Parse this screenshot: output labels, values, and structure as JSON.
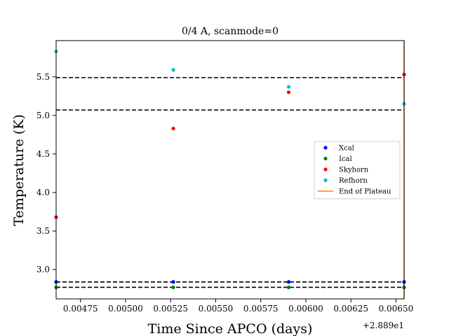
{
  "chart_data": {
    "type": "scatter",
    "title": "0/4 A, scanmode=0",
    "xlabel": "Time Since APCO (days)",
    "ylabel": "Temperature (K)",
    "x_offset_label": "+2.889e1",
    "xlim": [
      0.004615,
      0.006545
    ],
    "ylim": [
      2.62,
      5.97
    ],
    "x_ticks": [
      {
        "value": 0.00475,
        "label": "0.00475"
      },
      {
        "value": 0.005,
        "label": "0.00500"
      },
      {
        "value": 0.00525,
        "label": "0.00525"
      },
      {
        "value": 0.0055,
        "label": "0.00550"
      },
      {
        "value": 0.00575,
        "label": "0.00575"
      },
      {
        "value": 0.006,
        "label": "0.00600"
      },
      {
        "value": 0.00625,
        "label": "0.00625"
      },
      {
        "value": 0.0065,
        "label": "0.00650"
      }
    ],
    "y_ticks": [
      {
        "value": 3.0,
        "label": "3.0"
      },
      {
        "value": 3.5,
        "label": "3.5"
      },
      {
        "value": 4.0,
        "label": "4.0"
      },
      {
        "value": 4.5,
        "label": "4.5"
      },
      {
        "value": 5.0,
        "label": "5.0"
      },
      {
        "value": 5.5,
        "label": "5.5"
      }
    ],
    "series": [
      {
        "name": "Xcal",
        "color": "#0000ff",
        "x": [
          0.004615,
          0.005265,
          0.005905,
          0.006545
        ],
        "y": [
          2.84,
          2.84,
          2.84,
          2.84
        ]
      },
      {
        "name": "Ical",
        "color": "#008000",
        "x": [
          0.004615,
          0.005265,
          0.005905,
          0.006545
        ],
        "y": [
          2.77,
          2.77,
          2.77,
          2.77
        ]
      },
      {
        "name": "Skyhorn",
        "color": "#ff0000",
        "x": [
          0.004615,
          0.005265,
          0.005905,
          0.006545
        ],
        "y": [
          3.68,
          4.83,
          5.3,
          5.53
        ]
      },
      {
        "name": "Refhorn",
        "color": "#00bfbf",
        "x": [
          0.004615,
          0.005265,
          0.005905,
          0.006545
        ],
        "y": [
          5.83,
          5.59,
          5.37,
          5.15
        ]
      }
    ],
    "hlines": [
      {
        "y": 5.49,
        "style": "dashed",
        "color": "#000000"
      },
      {
        "y": 5.07,
        "style": "dashed",
        "color": "#000000"
      },
      {
        "y": 2.84,
        "style": "dashed",
        "color": "#000000"
      },
      {
        "y": 2.77,
        "style": "dashed",
        "color": "#000000"
      }
    ],
    "vline": {
      "name": "End of Plateau",
      "x": 0.006545,
      "color": "#ff7f0e"
    },
    "legend": {
      "placement": "center-right",
      "entries": [
        {
          "label": "Xcal",
          "kind": "marker",
          "color": "#0000ff"
        },
        {
          "label": "Ical",
          "kind": "marker",
          "color": "#008000"
        },
        {
          "label": "Skyhorn",
          "kind": "marker",
          "color": "#ff0000"
        },
        {
          "label": "Refhorn",
          "kind": "marker",
          "color": "#00bfbf"
        },
        {
          "label": "End of Plateau",
          "kind": "line",
          "color": "#ff7f0e"
        }
      ]
    },
    "grid": false
  }
}
